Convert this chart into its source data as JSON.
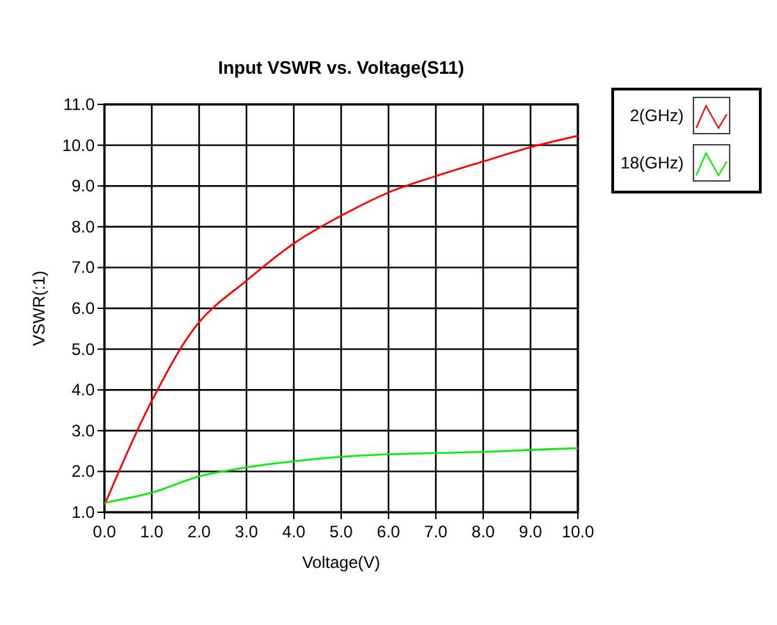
{
  "chart_data": {
    "type": "line",
    "title": "Input VSWR vs. Voltage(S11)",
    "xlabel": "Voltage(V)",
    "ylabel": "VSWR(:1)",
    "x": [
      0,
      1,
      2,
      3,
      4,
      5,
      6,
      7,
      8,
      9,
      10
    ],
    "series": [
      {
        "name": "2(GHz)",
        "color": "#ff0000",
        "values": [
          1.17,
          3.73,
          5.66,
          6.68,
          7.59,
          8.27,
          8.84,
          9.24,
          9.6,
          9.95,
          10.23
        ]
      },
      {
        "name": "18(GHz)",
        "color": "#00ee00",
        "values": [
          1.23,
          1.48,
          1.88,
          2.1,
          2.25,
          2.36,
          2.42,
          2.45,
          2.48,
          2.53,
          2.57
        ]
      }
    ],
    "xlim": [
      0,
      10
    ],
    "ylim": [
      1,
      11
    ],
    "xticks": [
      {
        "value": 0,
        "label": "0.0"
      },
      {
        "value": 1,
        "label": "1.0"
      },
      {
        "value": 2,
        "label": "2.0"
      },
      {
        "value": 3,
        "label": "3.0"
      },
      {
        "value": 4,
        "label": "4.0"
      },
      {
        "value": 5,
        "label": "5.0"
      },
      {
        "value": 6,
        "label": "6.0"
      },
      {
        "value": 7,
        "label": "7.0"
      },
      {
        "value": 8,
        "label": "8.0"
      },
      {
        "value": 9,
        "label": "9.0"
      },
      {
        "value": 10,
        "label": "10.0"
      }
    ],
    "yticks": [
      {
        "value": 1,
        "label": "1.0"
      },
      {
        "value": 2,
        "label": "2.0"
      },
      {
        "value": 3,
        "label": "3.0"
      },
      {
        "value": 4,
        "label": "4.0"
      },
      {
        "value": 5,
        "label": "5.0"
      },
      {
        "value": 6,
        "label": "6.0"
      },
      {
        "value": 7,
        "label": "7.0"
      },
      {
        "value": 8,
        "label": "8.0"
      },
      {
        "value": 9,
        "label": "9.0"
      },
      {
        "value": 10,
        "label": "10.0"
      },
      {
        "value": 11,
        "label": "11.0"
      }
    ],
    "grid": true,
    "legend": "top right",
    "marker": "none",
    "line_style": "solid"
  }
}
